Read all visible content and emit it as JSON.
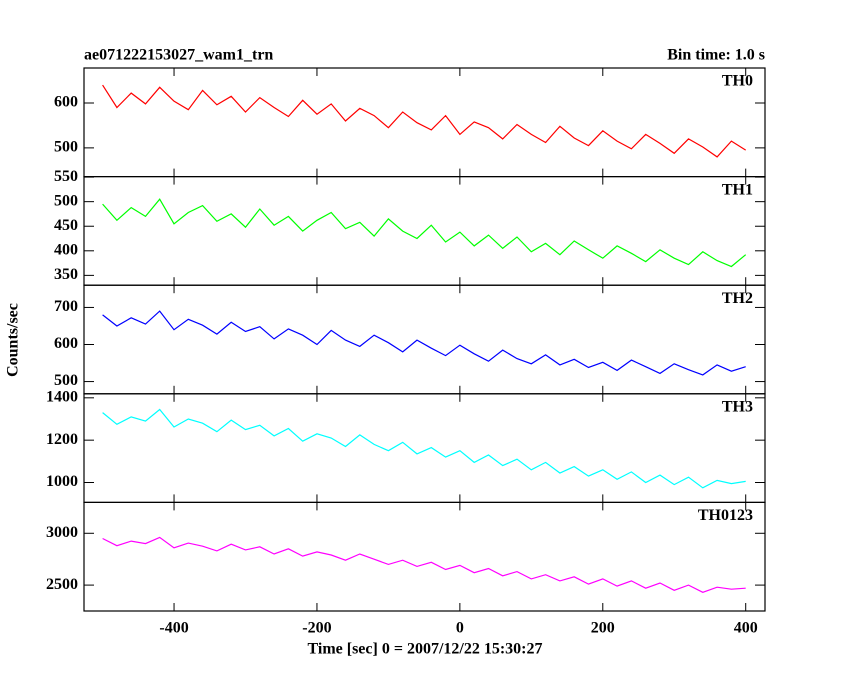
{
  "chart_data": {
    "type": "line",
    "title": "ae071222153027_wam1_trn",
    "subtitle": "Bin time: 1.0 s",
    "xlabel": "Time [sec] 0 = 2007/12/22 15:30:27",
    "ylabel": "Counts/sec",
    "xlim": [
      -526,
      427
    ],
    "xticks": [
      -400,
      -200,
      0,
      200,
      400
    ],
    "x": [
      -500,
      -480,
      -460,
      -440,
      -420,
      -400,
      -380,
      -360,
      -340,
      -320,
      -300,
      -280,
      -260,
      -240,
      -220,
      -200,
      -180,
      -160,
      -140,
      -120,
      -100,
      -80,
      -60,
      -40,
      -20,
      0,
      20,
      40,
      60,
      80,
      100,
      120,
      140,
      160,
      180,
      200,
      220,
      240,
      260,
      280,
      300,
      320,
      340,
      360,
      380,
      400
    ],
    "series": [
      {
        "name": "TH0",
        "color": "#ff0000",
        "ylim": [
          436,
          678
        ],
        "yticks": [
          500,
          600
        ],
        "values": [
          640,
          590,
          622,
          598,
          635,
          604,
          585,
          628,
          596,
          615,
          580,
          612,
          590,
          570,
          606,
          575,
          598,
          560,
          588,
          572,
          545,
          580,
          556,
          540,
          572,
          530,
          558,
          545,
          520,
          552,
          530,
          512,
          548,
          522,
          505,
          538,
          515,
          498,
          530,
          510,
          488,
          520,
          502,
          480,
          515,
          495
        ]
      },
      {
        "name": "TH1",
        "color": "#00ff00",
        "ylim": [
          330,
          551
        ],
        "yticks": [
          350,
          400,
          450,
          500,
          550
        ],
        "values": [
          495,
          462,
          488,
          470,
          505,
          455,
          478,
          492,
          460,
          475,
          448,
          485,
          452,
          470,
          440,
          462,
          478,
          445,
          458,
          430,
          465,
          440,
          425,
          452,
          418,
          438,
          410,
          432,
          405,
          428,
          398,
          415,
          392,
          420,
          402,
          385,
          410,
          395,
          378,
          402,
          385,
          372,
          398,
          380,
          368,
          392
        ]
      },
      {
        "name": "TH2",
        "color": "#0000ff",
        "ylim": [
          467,
          760
        ],
        "yticks": [
          500,
          600,
          700
        ],
        "values": [
          680,
          650,
          672,
          655,
          690,
          640,
          668,
          652,
          628,
          660,
          635,
          648,
          615,
          642,
          625,
          600,
          638,
          612,
          595,
          625,
          605,
          580,
          612,
          590,
          570,
          598,
          575,
          555,
          585,
          562,
          548,
          572,
          545,
          560,
          538,
          552,
          530,
          558,
          540,
          522,
          548,
          532,
          518,
          545,
          528,
          540
        ]
      },
      {
        "name": "TH3",
        "color": "#00ffff",
        "ylim": [
          906,
          1419
        ],
        "yticks": [
          1000,
          1200,
          1400
        ],
        "values": [
          1330,
          1275,
          1310,
          1290,
          1345,
          1262,
          1300,
          1280,
          1240,
          1295,
          1250,
          1270,
          1220,
          1255,
          1195,
          1230,
          1210,
          1170,
          1225,
          1180,
          1150,
          1190,
          1135,
          1165,
          1120,
          1150,
          1095,
          1130,
          1080,
          1110,
          1060,
          1095,
          1045,
          1075,
          1030,
          1060,
          1015,
          1050,
          1000,
          1035,
          990,
          1025,
          975,
          1010,
          995,
          1005
        ]
      },
      {
        "name": "TH0123",
        "color": "#ff00ff",
        "ylim": [
          2250,
          3298
        ],
        "yticks": [
          2500,
          3000
        ],
        "values": [
          2950,
          2880,
          2925,
          2900,
          2960,
          2860,
          2905,
          2875,
          2830,
          2895,
          2840,
          2870,
          2800,
          2850,
          2780,
          2820,
          2790,
          2740,
          2800,
          2750,
          2700,
          2740,
          2680,
          2720,
          2650,
          2690,
          2620,
          2660,
          2590,
          2630,
          2560,
          2600,
          2540,
          2580,
          2510,
          2560,
          2490,
          2540,
          2470,
          2520,
          2450,
          2500,
          2430,
          2480,
          2460,
          2470
        ]
      }
    ]
  }
}
